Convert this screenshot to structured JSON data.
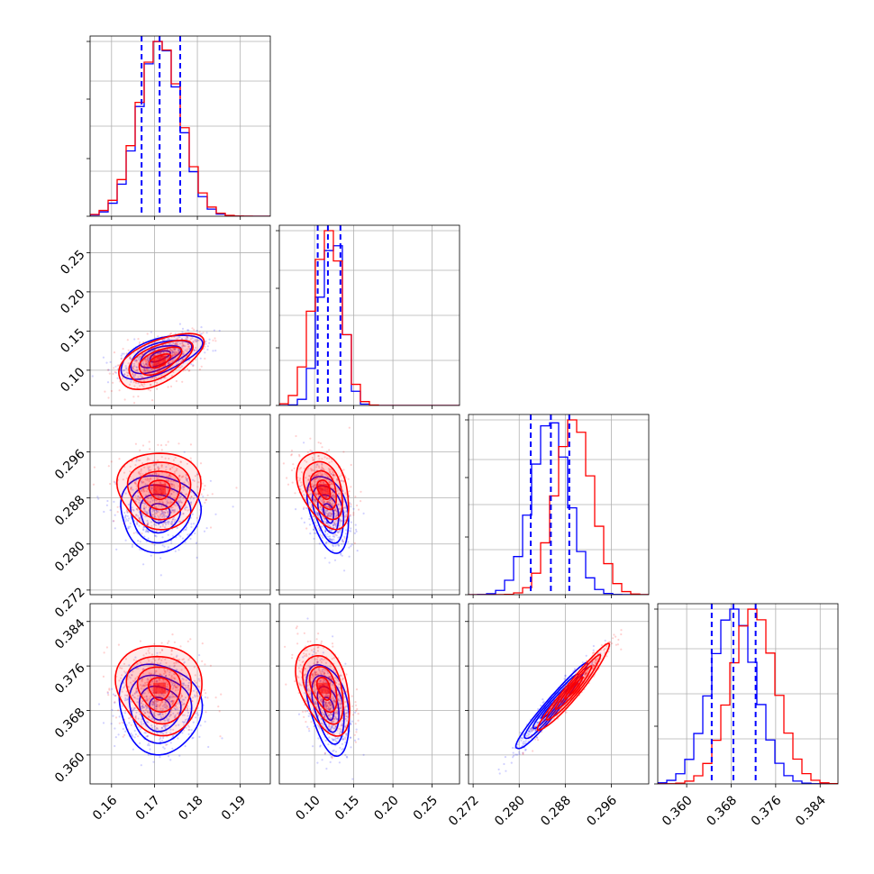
{
  "chart_data": {
    "type": "corner",
    "parameters": [
      {
        "id": "p1",
        "range": [
          0.155,
          0.197
        ],
        "ticks": [
          0.16,
          0.17,
          0.18,
          0.19
        ],
        "tick_labels": [
          "0.16",
          "0.17",
          "0.18",
          "0.19"
        ]
      },
      {
        "id": "p2",
        "range": [
          0.055,
          0.285
        ],
        "ticks": [
          0.1,
          0.15,
          0.2,
          0.25
        ],
        "tick_labels": [
          "0.10",
          "0.15",
          "0.20",
          "0.25"
        ]
      },
      {
        "id": "p3",
        "range": [
          0.2712,
          0.3025
        ],
        "ticks": [
          0.272,
          0.28,
          0.288,
          0.296
        ],
        "tick_labels": [
          "0.272",
          "0.280",
          "0.288",
          "0.296"
        ]
      },
      {
        "id": "p4",
        "range": [
          0.3548,
          0.3872
        ],
        "ticks": [
          0.36,
          0.368,
          0.376,
          0.384
        ],
        "tick_labels": [
          "0.360",
          "0.368",
          "0.376",
          "0.384"
        ]
      }
    ],
    "series": [
      {
        "color": "#0000ff",
        "mean": [
          0.1712,
          0.118,
          0.2854,
          0.3684
        ],
        "sd": [
          0.0048,
          0.0135,
          0.0032,
          0.004
        ]
      },
      {
        "color": "#ff0000",
        "mean": [
          0.1712,
          0.112,
          0.2895,
          0.372
        ],
        "sd": [
          0.005,
          0.017,
          0.0032,
          0.004
        ]
      }
    ],
    "quantile_lines": {
      "color": "#0000ff",
      "style": "dashed",
      "values": [
        [
          0.167,
          0.1712,
          0.176
        ],
        [
          0.104,
          0.117,
          0.133
        ],
        [
          0.282,
          0.2855,
          0.2887
        ],
        [
          0.3645,
          0.3684,
          0.3724
        ]
      ]
    },
    "contours": {
      "levels_sigma": [
        0.5,
        1.0,
        1.5,
        2.0
      ]
    },
    "grid": true
  }
}
